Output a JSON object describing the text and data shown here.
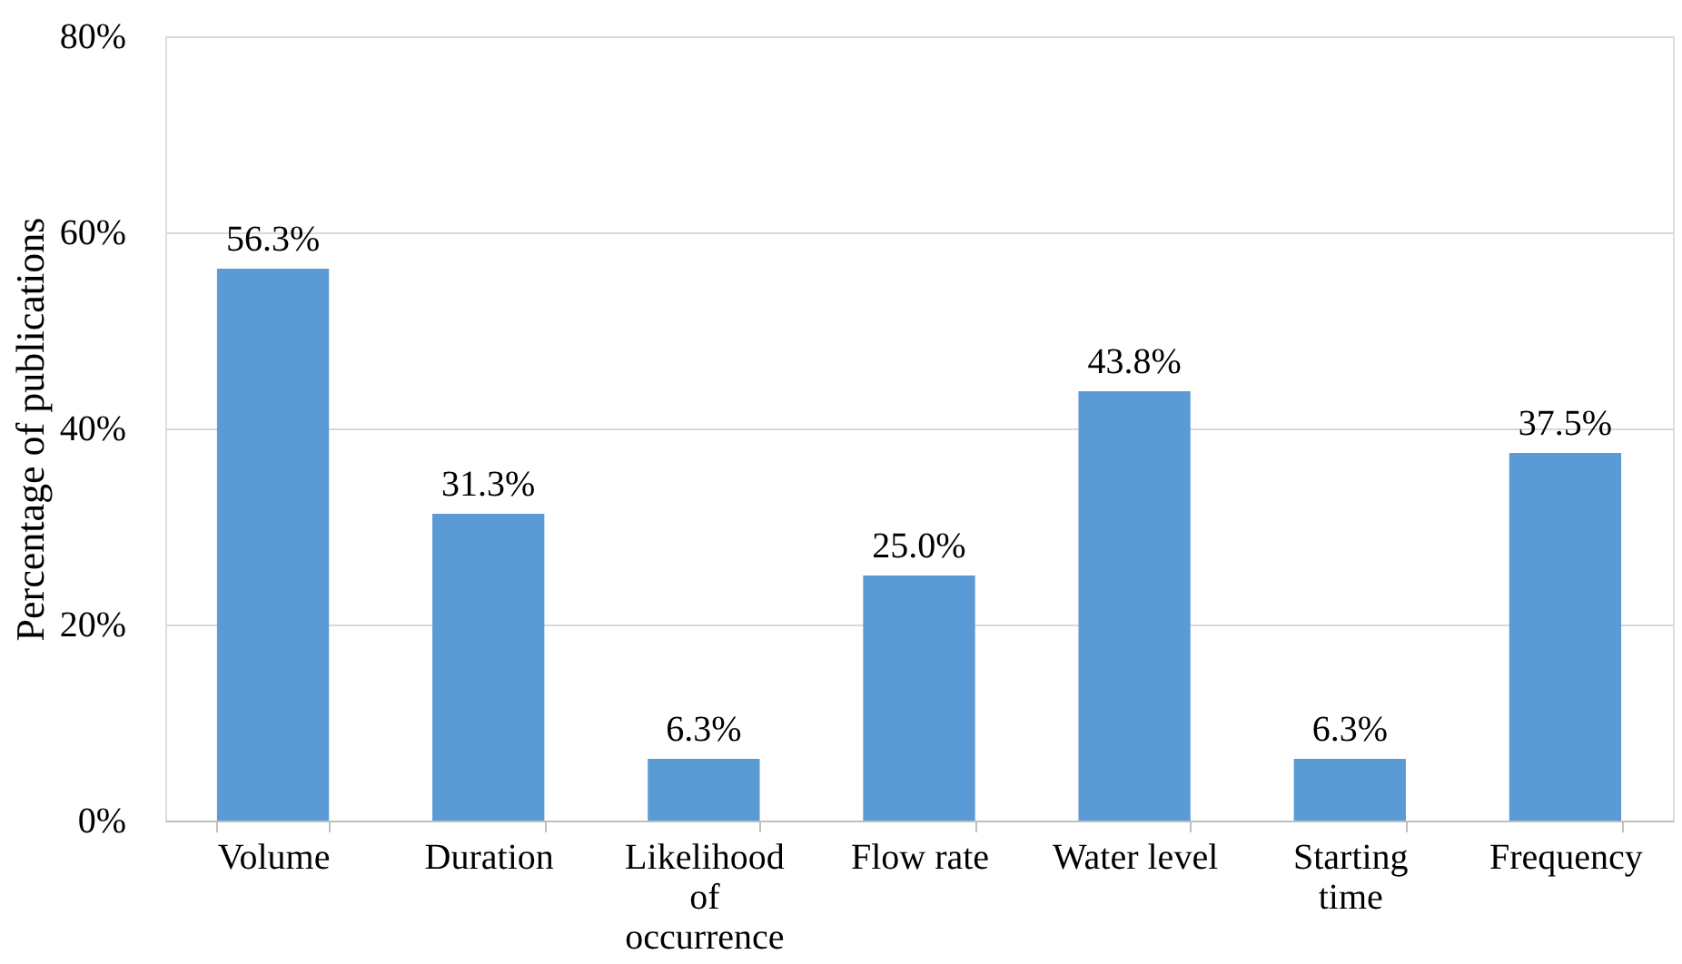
{
  "chart_data": {
    "type": "bar",
    "ylabel": "Percentage of publications",
    "categories": [
      "Volume",
      "Duration",
      "Likelihood of occurrence",
      "Flow rate",
      "Water level",
      "Starting time",
      "Frequency"
    ],
    "values": [
      56.3,
      31.3,
      6.3,
      25.0,
      43.8,
      6.3,
      37.5
    ],
    "value_labels": [
      "56.3%",
      "31.3%",
      "6.3%",
      "25.0%",
      "43.8%",
      "6.3%",
      "37.5%"
    ],
    "color": "#5b9bd5",
    "ylim": [
      0,
      80
    ],
    "yticks": [
      {
        "value": 0,
        "label": "0%"
      },
      {
        "value": 20,
        "label": "20%"
      },
      {
        "value": 40,
        "label": "40%"
      },
      {
        "value": 60,
        "label": "60%"
      },
      {
        "value": 80,
        "label": "80%"
      }
    ],
    "grid": "y"
  }
}
